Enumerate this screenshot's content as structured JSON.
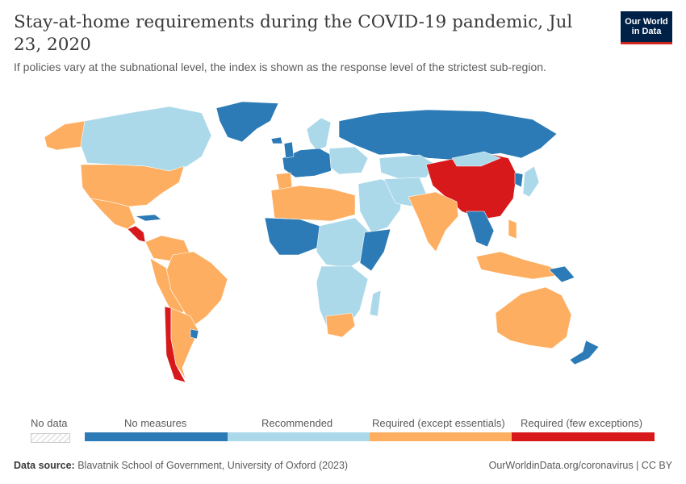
{
  "header": {
    "title": "Stay-at-home requirements during the COVID-19 pandemic, Jul 23, 2020",
    "subtitle": "If policies vary at the subnational level, the index is shown as the response level of the strictest sub-region."
  },
  "logo": {
    "line1": "Our World",
    "line2": "in Data"
  },
  "legend": {
    "no_data_label": "No data",
    "categories": [
      {
        "label": "No measures",
        "color": "#2c7bb6"
      },
      {
        "label": "Recommended",
        "color": "#abd9e9"
      },
      {
        "label": "Required (except essentials)",
        "color": "#fdae61"
      },
      {
        "label": "Required (few exceptions)",
        "color": "#d7191c"
      }
    ]
  },
  "footer": {
    "source_label": "Data source:",
    "source_text": "Blavatnik School of Government, University of Oxford (2023)",
    "right_text": "OurWorldinData.org/coronavirus | CC BY"
  },
  "colors": {
    "no_measures": "#2c7bb6",
    "recommended": "#abd9e9",
    "required_except_essentials": "#fdae61",
    "required_few_exceptions": "#d7191c",
    "border": "#ffffff"
  }
}
